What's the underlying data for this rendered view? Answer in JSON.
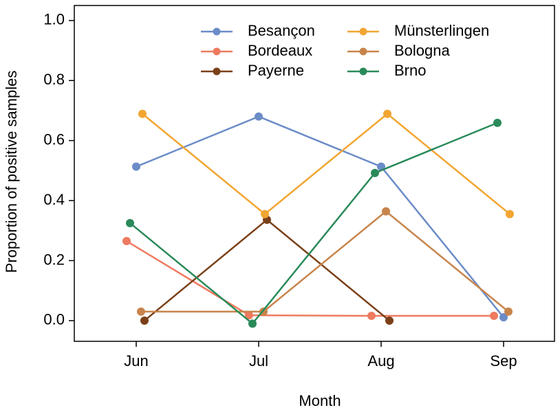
{
  "chart_data": {
    "type": "line",
    "x_label": "Month",
    "y_label": "Proportion of positive samples",
    "categories": [
      "Jun",
      "Jul",
      "Aug",
      "Sep"
    ],
    "series": [
      {
        "name": "Besançon",
        "color": "#6b8cc7",
        "values": [
          0.513,
          0.68,
          0.513,
          0.011
        ]
      },
      {
        "name": "Bordeaux",
        "color": "#ee7a60",
        "values": [
          0.265,
          0.018,
          0.016,
          0.016
        ]
      },
      {
        "name": "Payerne",
        "color": "#7b4018",
        "values": [
          0,
          0.336,
          0,
          null
        ]
      },
      {
        "name": "Münsterlingen",
        "color": "#f2a531",
        "values": [
          0.689,
          0.355,
          0.689,
          0.355
        ]
      },
      {
        "name": "Bologna",
        "color": "#c8844b",
        "values": [
          0.03,
          0.03,
          0.364,
          0.03
        ]
      },
      {
        "name": "Brno",
        "color": "#2a8a5a",
        "values": [
          0.325,
          -0.01,
          0.492,
          0.659
        ]
      }
    ],
    "ylim": [
      -0.069,
      1.05
    ],
    "yticks": [
      {
        "value": 0,
        "label": "0.0"
      },
      0.2,
      0.4,
      0.6,
      0.8,
      {
        "value": 1,
        "label": "1.0"
      }
    ]
  }
}
